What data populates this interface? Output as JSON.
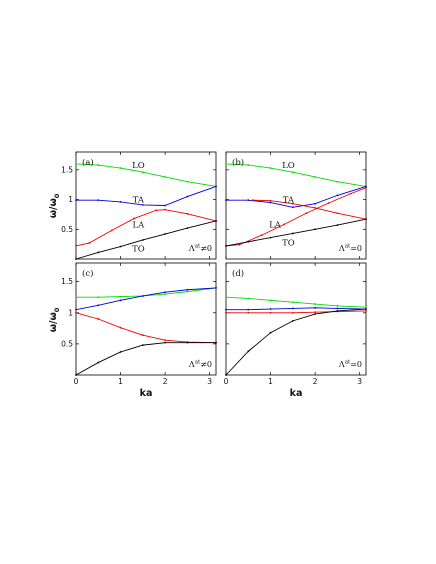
{
  "figure": {
    "ylabel": "ω/ω",
    "ylabel_sub": "0",
    "xlabel": "ka"
  },
  "chart_data": [
    {
      "panel": "(a)",
      "type": "line",
      "annotation": {
        "base": "Λ",
        "sup": "at",
        "tail": "≠0"
      },
      "xlim": [
        0,
        3.14159
      ],
      "ylim": [
        0,
        1.8
      ],
      "xticks": [
        0,
        1,
        2,
        3
      ],
      "yticks": [
        0.5,
        1,
        1.5
      ],
      "grid": false,
      "show_ytick_labels": true,
      "show_xtick_labels": false,
      "series": [
        {
          "name": "LO",
          "color": "#00dd00",
          "x": [
            0,
            0.5,
            1,
            1.5,
            2,
            2.5,
            3.14159
          ],
          "y": [
            1.6,
            1.58,
            1.53,
            1.46,
            1.38,
            1.3,
            1.22
          ]
        },
        {
          "name": "TA",
          "color": "#0000dd",
          "x": [
            0,
            0.5,
            1,
            1.5,
            2,
            2.5,
            3.14159
          ],
          "y": [
            0.99,
            0.99,
            0.96,
            0.91,
            0.9,
            1.05,
            1.22
          ]
        },
        {
          "name": "LA",
          "color": "#ee0000",
          "x": [
            0,
            0.3,
            0.8,
            1.3,
            1.8,
            2.0,
            2.5,
            3.14159
          ],
          "y": [
            0.22,
            0.27,
            0.48,
            0.68,
            0.82,
            0.83,
            0.76,
            0.64
          ]
        },
        {
          "name": "TO",
          "color": "#000000",
          "x": [
            0,
            0.5,
            1,
            1.5,
            2,
            2.5,
            3.14159
          ],
          "y": [
            0.0,
            0.11,
            0.21,
            0.32,
            0.42,
            0.52,
            0.64
          ]
        }
      ],
      "labels": [
        {
          "text": "LO",
          "x": 1.4,
          "y": 1.58
        },
        {
          "text": "TA",
          "x": 1.4,
          "y": 1.0
        },
        {
          "text": "LA",
          "x": 1.4,
          "y": 0.58
        },
        {
          "text": "TO",
          "x": 1.4,
          "y": 0.18
        }
      ]
    },
    {
      "panel": "(b)",
      "type": "line",
      "annotation": {
        "base": "Λ",
        "sup": "at",
        "tail": "=0"
      },
      "xlim": [
        0,
        3.14159
      ],
      "ylim": [
        0,
        1.8
      ],
      "xticks": [
        0,
        1,
        2,
        3
      ],
      "yticks": [
        0.5,
        1,
        1.5
      ],
      "grid": false,
      "show_ytick_labels": false,
      "show_xtick_labels": false,
      "series": [
        {
          "name": "LO",
          "color": "#00dd00",
          "x": [
            0,
            0.5,
            1,
            1.5,
            2,
            2.5,
            3.14159
          ],
          "y": [
            1.6,
            1.58,
            1.53,
            1.46,
            1.38,
            1.3,
            1.22
          ]
        },
        {
          "name": "TA",
          "color": "#0000dd",
          "x": [
            0,
            0.5,
            1,
            1.5,
            2,
            2.5,
            3.14159
          ],
          "y": [
            0.99,
            0.99,
            0.95,
            0.87,
            0.93,
            1.07,
            1.22
          ]
        },
        {
          "name": "LA",
          "color": "#ee0000",
          "x": [
            0,
            0.3,
            0.8,
            1.3,
            1.8,
            2.3,
            2.8,
            3.14159
          ],
          "y": [
            0.22,
            0.24,
            0.4,
            0.58,
            0.77,
            0.94,
            1.1,
            1.2
          ]
        },
        {
          "name": "",
          "color": "#ee0000",
          "x": [
            0.6,
            1,
            1.5,
            2,
            2.5,
            3.14159
          ],
          "y": [
            0.99,
            0.98,
            0.93,
            0.86,
            0.77,
            0.67
          ]
        },
        {
          "name": "TO",
          "color": "#000000",
          "x": [
            0,
            0.5,
            1,
            1.5,
            2,
            2.5,
            3.14159
          ],
          "y": [
            0.22,
            0.29,
            0.36,
            0.43,
            0.5,
            0.57,
            0.67
          ]
        }
      ],
      "labels": [
        {
          "text": "LO",
          "x": 1.4,
          "y": 1.58
        },
        {
          "text": "TA",
          "x": 1.4,
          "y": 1.0
        },
        {
          "text": "LA",
          "x": 1.1,
          "y": 0.58
        },
        {
          "text": "TO",
          "x": 1.4,
          "y": 0.28
        }
      ]
    },
    {
      "panel": "(c)",
      "type": "line",
      "annotation": {
        "base": "Λ",
        "sup": "at",
        "tail": "≠0"
      },
      "xlim": [
        0,
        3.14159
      ],
      "ylim": [
        0,
        1.8
      ],
      "xticks": [
        0,
        1,
        2,
        3
      ],
      "yticks": [
        0.5,
        1,
        1.5
      ],
      "grid": false,
      "show_ytick_labels": true,
      "show_xtick_labels": true,
      "series": [
        {
          "name": "",
          "color": "#00dd00",
          "x": [
            0,
            0.5,
            1,
            1.5,
            2,
            2.5,
            3.14159
          ],
          "y": [
            1.25,
            1.25,
            1.26,
            1.27,
            1.3,
            1.34,
            1.4
          ]
        },
        {
          "name": "",
          "color": "#0000dd",
          "x": [
            0,
            0.5,
            1,
            1.5,
            2,
            2.5,
            3.14159
          ],
          "y": [
            1.05,
            1.12,
            1.2,
            1.27,
            1.33,
            1.37,
            1.4
          ]
        },
        {
          "name": "",
          "color": "#ee0000",
          "x": [
            0,
            0.5,
            1,
            1.5,
            2,
            2.5,
            3.14159
          ],
          "y": [
            1.0,
            0.9,
            0.76,
            0.64,
            0.56,
            0.53,
            0.52
          ]
        },
        {
          "name": "",
          "color": "#000000",
          "x": [
            0,
            0.5,
            1,
            1.5,
            2,
            2.5,
            3.14159
          ],
          "y": [
            0.0,
            0.2,
            0.37,
            0.48,
            0.52,
            0.52,
            0.52
          ]
        }
      ],
      "labels": []
    },
    {
      "panel": "(d)",
      "type": "line",
      "annotation": {
        "base": "Λ",
        "sup": "at",
        "tail": "=0"
      },
      "xlim": [
        0,
        3.14159
      ],
      "ylim": [
        0,
        1.8
      ],
      "xticks": [
        0,
        1,
        2,
        3
      ],
      "yticks": [
        0.5,
        1,
        1.5
      ],
      "grid": false,
      "show_ytick_labels": false,
      "show_xtick_labels": true,
      "series": [
        {
          "name": "",
          "color": "#00dd00",
          "x": [
            0,
            0.5,
            1,
            1.5,
            2,
            2.5,
            3.14159
          ],
          "y": [
            1.25,
            1.23,
            1.2,
            1.17,
            1.14,
            1.11,
            1.09
          ]
        },
        {
          "name": "",
          "color": "#0000dd",
          "x": [
            0,
            0.5,
            1,
            1.5,
            2,
            2.5,
            3.14159
          ],
          "y": [
            1.05,
            1.05,
            1.06,
            1.07,
            1.08,
            1.07,
            1.06
          ]
        },
        {
          "name": "",
          "color": "#ee0000",
          "x": [
            0,
            0.5,
            1,
            1.5,
            2,
            2.5,
            3.14159
          ],
          "y": [
            1.0,
            1.0,
            1.0,
            1.0,
            1.01,
            1.02,
            1.03
          ]
        },
        {
          "name": "",
          "color": "#000000",
          "x": [
            0,
            0.5,
            1,
            1.5,
            2,
            2.5,
            3.14159
          ],
          "y": [
            0.0,
            0.38,
            0.68,
            0.87,
            0.98,
            1.03,
            1.06
          ]
        }
      ],
      "labels": []
    }
  ]
}
